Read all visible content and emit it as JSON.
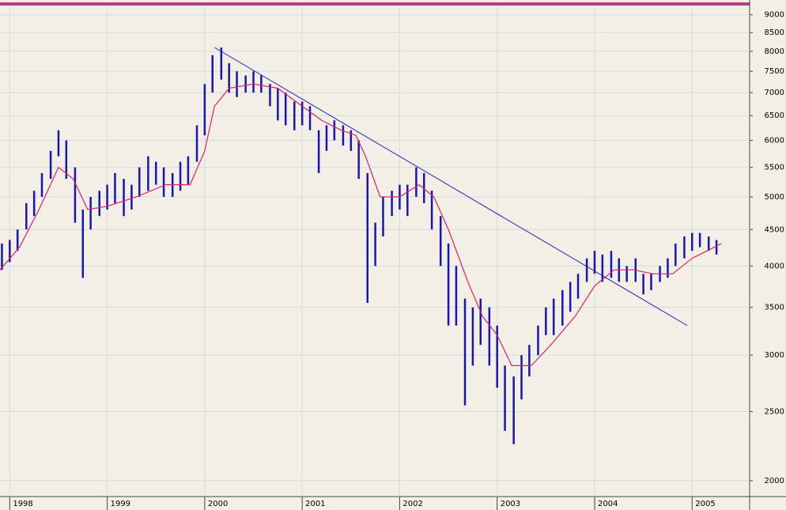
{
  "chart_data": {
    "type": "ohlc",
    "log_scale": true,
    "grid": true,
    "xlim": [
      1997.9,
      2005.59
    ],
    "ylim": [
      1900,
      9250
    ],
    "xticks": [
      1998,
      1999,
      2000,
      2001,
      2002,
      2003,
      2004,
      2005
    ],
    "yticks": [
      2000,
      2500,
      3000,
      3500,
      4000,
      4500,
      5000,
      5500,
      6000,
      6500,
      7000,
      7500,
      8000,
      8500,
      9000
    ],
    "series": [
      {
        "color": "#1616b4",
        "x": [
          1997.92,
          1998.0,
          1998.08,
          1998.17,
          1998.25,
          1998.33,
          1998.42,
          1998.5,
          1998.58,
          1998.67,
          1998.75,
          1998.83,
          1998.92,
          1999.0,
          1999.08,
          1999.17,
          1999.25,
          1999.33,
          1999.42,
          1999.5,
          1999.58,
          1999.67,
          1999.75,
          1999.83,
          1999.92,
          2000.0,
          2000.08,
          2000.17,
          2000.25,
          2000.33,
          2000.42,
          2000.5,
          2000.58,
          2000.67,
          2000.75,
          2000.83,
          2000.92,
          2001.0,
          2001.08,
          2001.17,
          2001.25,
          2001.33,
          2001.42,
          2001.5,
          2001.58,
          2001.67,
          2001.75,
          2001.83,
          2001.92,
          2002.0,
          2002.08,
          2002.17,
          2002.25,
          2002.33,
          2002.42,
          2002.5,
          2002.58,
          2002.67,
          2002.75,
          2002.83,
          2002.92,
          2003.0,
          2003.08,
          2003.17,
          2003.25,
          2003.33,
          2003.42,
          2003.5,
          2003.58,
          2003.67,
          2003.75,
          2003.83,
          2003.92,
          2004.0,
          2004.08,
          2004.17,
          2004.25,
          2004.33,
          2004.42,
          2004.5,
          2004.58,
          2004.67,
          2004.75,
          2004.83,
          2004.92,
          2005.0,
          2005.08,
          2005.17,
          2005.25
        ],
        "high": [
          4300,
          4350,
          4500,
          4900,
          5100,
          5400,
          5800,
          6200,
          6000,
          5500,
          4800,
          5000,
          5100,
          5200,
          5400,
          5300,
          5200,
          5500,
          5700,
          5600,
          5500,
          5400,
          5600,
          5700,
          6300,
          7200,
          7900,
          8100,
          7700,
          7500,
          7400,
          7500,
          7400,
          7200,
          7100,
          7000,
          6800,
          6800,
          6700,
          6200,
          6300,
          6400,
          6300,
          6200,
          6000,
          5400,
          4600,
          5000,
          5100,
          5200,
          5200,
          5500,
          5400,
          5100,
          4700,
          4300,
          4000,
          3600,
          3500,
          3600,
          3500,
          3300,
          2900,
          2800,
          3000,
          3100,
          3300,
          3500,
          3600,
          3700,
          3800,
          3900,
          4100,
          4200,
          4150,
          4200,
          4100,
          4000,
          4100,
          3900,
          3900,
          4000,
          4100,
          4300,
          4400,
          4450,
          4450,
          4400,
          4350
        ],
        "low": [
          3950,
          4050,
          4200,
          4500,
          4700,
          5000,
          5300,
          5700,
          5300,
          4600,
          3850,
          4500,
          4700,
          4800,
          4900,
          4700,
          4800,
          5000,
          5100,
          5200,
          5000,
          5000,
          5100,
          5200,
          5600,
          6100,
          7000,
          7300,
          7000,
          6900,
          7000,
          7000,
          7000,
          6700,
          6400,
          6300,
          6200,
          6300,
          6200,
          5400,
          5800,
          6000,
          5900,
          5800,
          5300,
          3550,
          4000,
          4400,
          4700,
          4800,
          4700,
          5000,
          4900,
          4500,
          4000,
          3300,
          3300,
          2550,
          2900,
          3100,
          2900,
          2700,
          2350,
          2250,
          2600,
          2800,
          3000,
          3200,
          3200,
          3300,
          3450,
          3600,
          3800,
          3900,
          3800,
          3850,
          3800,
          3800,
          3800,
          3650,
          3700,
          3800,
          3850,
          4000,
          4100,
          4200,
          4250,
          4200,
          4150
        ]
      },
      {
        "color": "#e0206a",
        "x": [
          1997.9,
          1998.1,
          1998.3,
          1998.5,
          1998.65,
          1998.8,
          1999.0,
          1999.3,
          1999.6,
          1999.85,
          2000.0,
          2000.1,
          2000.25,
          2000.5,
          2000.75,
          2001.0,
          2001.2,
          2001.4,
          2001.55,
          2001.65,
          2001.8,
          2002.0,
          2002.2,
          2002.35,
          2002.5,
          2002.7,
          2002.85,
          2003.0,
          2003.15,
          2003.35,
          2003.55,
          2003.8,
          2004.0,
          2004.2,
          2004.4,
          2004.6,
          2004.8,
          2005.0,
          2005.3
        ],
        "values": [
          3950,
          4250,
          4800,
          5500,
          5300,
          4800,
          4850,
          5000,
          5200,
          5200,
          5800,
          6700,
          7100,
          7200,
          7100,
          6700,
          6400,
          6200,
          6100,
          5700,
          5000,
          5000,
          5200,
          5000,
          4500,
          3800,
          3400,
          3200,
          2900,
          2900,
          3100,
          3400,
          3750,
          3950,
          3950,
          3900,
          3900,
          4100,
          4300
        ]
      }
    ],
    "trendline": {
      "color": "#2020c0",
      "x": [
        2000.1,
        2004.95
      ],
      "y": [
        8100,
        3300
      ]
    }
  }
}
